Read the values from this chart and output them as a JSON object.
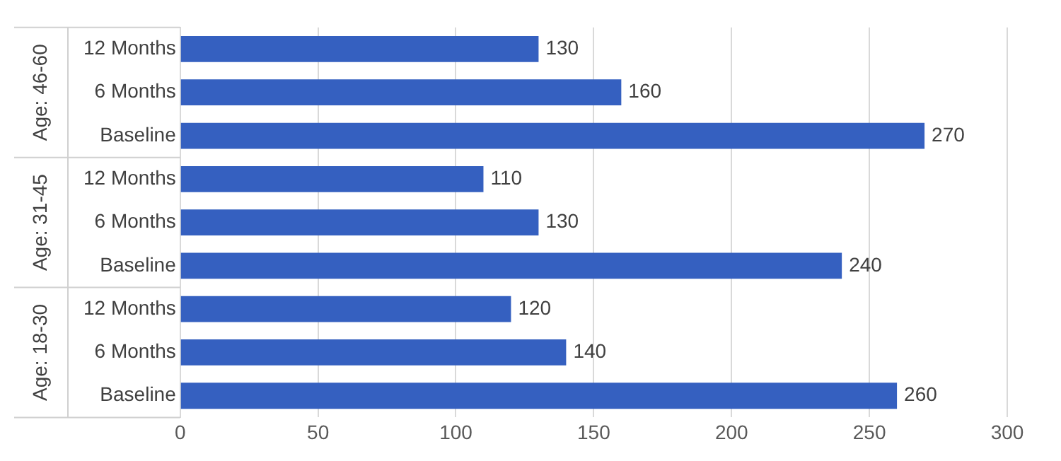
{
  "chart_data": {
    "type": "bar",
    "orientation": "horizontal",
    "categories": [
      "12 Months",
      "6 Months",
      "Baseline",
      "12 Months",
      "6 Months",
      "Baseline",
      "12 Months",
      "6 Months",
      "Baseline"
    ],
    "values": [
      130,
      160,
      270,
      110,
      130,
      240,
      120,
      140,
      260
    ],
    "color": "#3560c0",
    "xlim": [
      0,
      300
    ],
    "xticks": [
      0,
      50,
      100,
      150,
      200,
      250,
      300
    ],
    "grid": "x",
    "data_labels": true,
    "annotations": [
      "Age: 46-60",
      "Age: 31-45",
      "Age: 18-30"
    ]
  }
}
